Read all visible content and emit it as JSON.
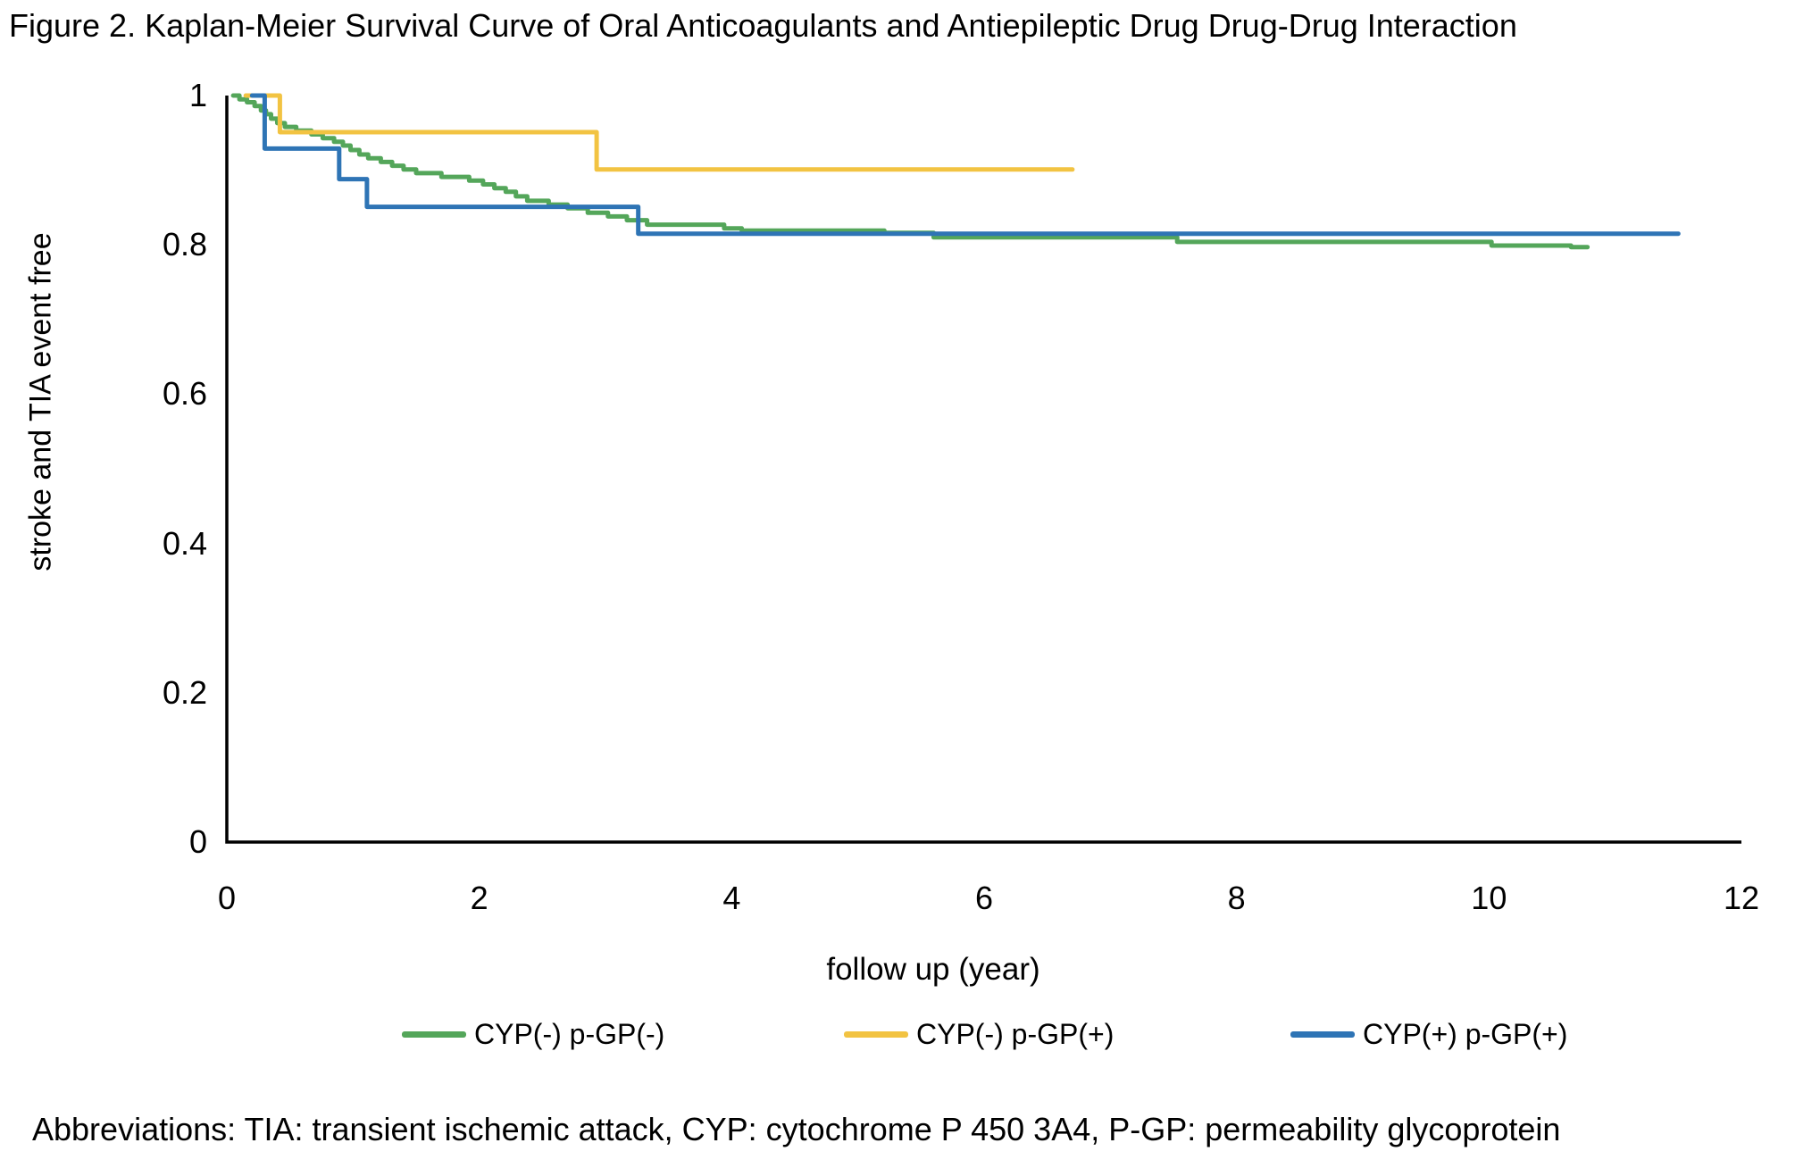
{
  "title": "Figure 2. Kaplan-Meier Survival Curve of Oral Anticoagulants and Antiepileptic Drug Drug-Drug Interaction",
  "abbreviations": "Abbreviations: TIA: transient ischemic attack, CYP: cytochrome P 450 3A4, P-GP: permeability glycoprotein",
  "chart_data": {
    "type": "line",
    "subtype": "kaplan-meier-step",
    "title": "",
    "xlabel": "follow up (year)",
    "ylabel": "stroke and TIA event free",
    "xlim": [
      0,
      12
    ],
    "ylim": [
      0,
      1
    ],
    "grid": false,
    "legend_position": "bottom",
    "axis_color": "#000000",
    "x_ticks": [
      {
        "value": 0,
        "label": "0"
      },
      {
        "value": 2,
        "label": "2"
      },
      {
        "value": 4,
        "label": "4"
      },
      {
        "value": 6,
        "label": "6"
      },
      {
        "value": 8,
        "label": "8"
      },
      {
        "value": 10,
        "label": "10"
      },
      {
        "value": 12,
        "label": "12"
      }
    ],
    "y_ticks": [
      {
        "value": 0,
        "label": "0"
      },
      {
        "value": 0.2,
        "label": "0.2"
      },
      {
        "value": 0.4,
        "label": "0.4"
      },
      {
        "value": 0.6,
        "label": "0.6"
      },
      {
        "value": 0.8,
        "label": "0.8"
      },
      {
        "value": 1,
        "label": "1"
      }
    ],
    "series": [
      {
        "name": "CYP(-) p-GP(-)",
        "color": "#54A65A",
        "points": [
          [
            0.05,
            1.0
          ],
          [
            0.1,
            0.995
          ],
          [
            0.16,
            0.991
          ],
          [
            0.22,
            0.986
          ],
          [
            0.27,
            0.98
          ],
          [
            0.31,
            0.975
          ],
          [
            0.35,
            0.969
          ],
          [
            0.4,
            0.963
          ],
          [
            0.46,
            0.958
          ],
          [
            0.55,
            0.953
          ],
          [
            0.67,
            0.948
          ],
          [
            0.76,
            0.943
          ],
          [
            0.85,
            0.938
          ],
          [
            0.92,
            0.933
          ],
          [
            0.98,
            0.927
          ],
          [
            1.05,
            0.921
          ],
          [
            1.12,
            0.916
          ],
          [
            1.22,
            0.911
          ],
          [
            1.31,
            0.906
          ],
          [
            1.4,
            0.901
          ],
          [
            1.5,
            0.896
          ],
          [
            1.7,
            0.891
          ],
          [
            1.92,
            0.886
          ],
          [
            2.03,
            0.881
          ],
          [
            2.12,
            0.876
          ],
          [
            2.21,
            0.871
          ],
          [
            2.29,
            0.865
          ],
          [
            2.38,
            0.859
          ],
          [
            2.55,
            0.854
          ],
          [
            2.7,
            0.849
          ],
          [
            2.86,
            0.843
          ],
          [
            3.02,
            0.838
          ],
          [
            3.17,
            0.833
          ],
          [
            3.33,
            0.827
          ],
          [
            3.94,
            0.822
          ],
          [
            4.08,
            0.819
          ],
          [
            5.21,
            0.816
          ],
          [
            5.6,
            0.81
          ],
          [
            7.53,
            0.804
          ],
          [
            10.02,
            0.799
          ],
          [
            10.65,
            0.797
          ],
          [
            10.78,
            0.797
          ]
        ]
      },
      {
        "name": "CYP(-) p-GP(+)",
        "color": "#F2C342",
        "points": [
          [
            0.15,
            1.0
          ],
          [
            0.42,
            0.951
          ],
          [
            2.93,
            0.901
          ],
          [
            6.7,
            0.901
          ]
        ]
      },
      {
        "name": "CYP(+) p-GP(+)",
        "color": "#2E74B5",
        "points": [
          [
            0.2,
            1.0
          ],
          [
            0.3,
            0.929
          ],
          [
            0.89,
            0.888
          ],
          [
            1.11,
            0.851
          ],
          [
            3.26,
            0.815
          ],
          [
            11.5,
            0.815
          ]
        ]
      }
    ]
  }
}
